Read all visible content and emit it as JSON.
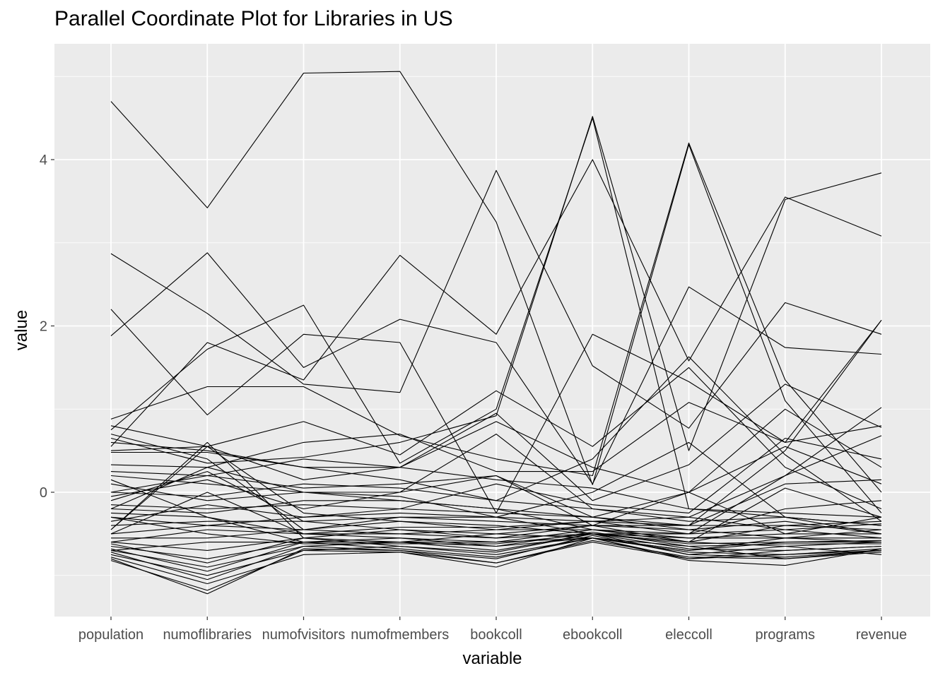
{
  "chart_data": {
    "type": "line",
    "title": "Parallel Coordinate Plot for Libraries in US",
    "xlabel": "variable",
    "ylabel": "value",
    "categories": [
      "population",
      "numoflibraries",
      "numofvisitors",
      "numofmembers",
      "bookcoll",
      "ebookcoll",
      "eleccoll",
      "programs",
      "revenue"
    ],
    "yticks": [
      0,
      2,
      4
    ],
    "ylim": [
      -1.5,
      5.4
    ],
    "grid": true,
    "panel_background": "#ebebeb",
    "grid_color": "#ffffff",
    "line_color": "#000000",
    "series": [
      {
        "values": [
          4.7,
          3.42,
          5.04,
          5.06,
          3.25,
          0.09,
          4.18,
          1.1,
          -0.25
        ]
      },
      {
        "values": [
          0.65,
          0.35,
          0.42,
          0.6,
          0.92,
          4.52,
          0.5,
          3.52,
          3.84
        ]
      },
      {
        "values": [
          0.55,
          1.8,
          1.35,
          2.85,
          1.9,
          4.0,
          1.58,
          3.55,
          3.08
        ]
      },
      {
        "values": [
          2.87,
          2.15,
          1.3,
          1.2,
          3.87,
          1.52,
          0.77,
          2.28,
          1.9
        ]
      },
      {
        "values": [
          1.88,
          2.88,
          1.5,
          2.08,
          1.8,
          0.1,
          2.47,
          1.74,
          1.66
        ]
      },
      {
        "values": [
          2.2,
          0.93,
          1.9,
          1.8,
          -0.25,
          1.9,
          1.33,
          0.6,
          2.07
        ]
      },
      {
        "values": [
          0.75,
          1.72,
          2.25,
          0.35,
          1.0,
          4.5,
          -0.2,
          -0.3,
          -0.5
        ]
      },
      {
        "values": [
          0.88,
          1.27,
          1.27,
          0.68,
          0.4,
          0.2,
          4.2,
          1.35,
          0.0
        ]
      },
      {
        "values": [
          0.8,
          0.55,
          0.85,
          0.45,
          1.22,
          0.55,
          1.5,
          0.3,
          -0.2
        ]
      },
      {
        "values": [
          0.33,
          0.3,
          0.6,
          0.7,
          0.25,
          0.25,
          1.08,
          0.6,
          0.8
        ]
      },
      {
        "values": [
          0.6,
          0.5,
          0.3,
          0.15,
          -0.1,
          0.4,
          1.63,
          0.45,
          -0.35
        ]
      },
      {
        "values": [
          0.5,
          0.55,
          0.15,
          0.3,
          0.85,
          0.3,
          0.0,
          -0.5,
          -0.3
        ]
      },
      {
        "values": [
          0.25,
          0.2,
          0.4,
          0.3,
          0.95,
          -0.1,
          0.33,
          1.3,
          0.78
        ]
      },
      {
        "values": [
          0.0,
          0.2,
          0.05,
          0.1,
          0.2,
          -0.3,
          0.0,
          1.0,
          0.3
        ]
      },
      {
        "values": [
          0.1,
          -0.1,
          0.0,
          0.0,
          0.7,
          -0.2,
          -0.3,
          0.2,
          1.02
        ]
      },
      {
        "values": [
          -0.05,
          0.15,
          -0.2,
          0.0,
          0.2,
          -0.4,
          -0.4,
          0.5,
          2.07
        ]
      },
      {
        "values": [
          -0.2,
          -0.25,
          -0.1,
          -0.1,
          -0.2,
          -0.45,
          -0.5,
          0.2,
          0.68
        ]
      },
      {
        "values": [
          -0.15,
          -0.2,
          -0.15,
          -0.2,
          -0.25,
          -0.3,
          -0.4,
          0.1,
          0.15
        ]
      },
      {
        "values": [
          -0.3,
          -0.4,
          -0.3,
          -0.25,
          -0.3,
          -0.5,
          -0.5,
          -0.2,
          -0.1
        ]
      },
      {
        "values": [
          -0.4,
          -0.35,
          -0.35,
          -0.3,
          -0.35,
          -0.4,
          -0.6,
          0.05,
          -0.3
        ]
      },
      {
        "values": [
          -0.45,
          0.55,
          -0.25,
          -0.35,
          -0.45,
          -0.45,
          -0.6,
          -0.4,
          -0.45
        ]
      },
      {
        "values": [
          -0.55,
          -0.55,
          -0.45,
          -0.35,
          -0.4,
          -0.5,
          -0.55,
          -0.5,
          -0.5
        ]
      },
      {
        "values": [
          -0.6,
          -0.7,
          -0.55,
          -0.45,
          -0.5,
          -0.55,
          -0.7,
          -0.55,
          -0.55
        ]
      },
      {
        "values": [
          -0.65,
          -0.8,
          -0.6,
          -0.55,
          -0.6,
          -0.55,
          -0.7,
          -0.6,
          -0.6
        ]
      },
      {
        "values": [
          -0.7,
          -0.9,
          -0.65,
          -0.6,
          -0.7,
          -0.5,
          -0.75,
          -0.65,
          -0.6
        ]
      },
      {
        "values": [
          -0.75,
          -1.0,
          -0.7,
          -0.65,
          -0.75,
          -0.55,
          -0.8,
          -0.7,
          -0.65
        ]
      },
      {
        "values": [
          -0.78,
          -1.1,
          -0.75,
          -0.72,
          -0.85,
          -0.6,
          -0.8,
          -0.75,
          -0.7
        ]
      },
      {
        "values": [
          -0.82,
          -1.18,
          -0.7,
          -0.72,
          -0.9,
          -0.55,
          -0.82,
          -0.88,
          -0.68
        ]
      },
      {
        "values": [
          -0.8,
          -1.22,
          -0.68,
          -0.7,
          -0.85,
          -0.58,
          -0.78,
          -0.8,
          -0.72
        ]
      },
      {
        "values": [
          -0.72,
          -1.05,
          -0.65,
          -0.7,
          -0.8,
          -0.52,
          -0.75,
          -0.78,
          -0.7
        ]
      },
      {
        "values": [
          -0.68,
          -0.95,
          -0.6,
          -0.68,
          -0.78,
          -0.55,
          -0.72,
          -0.75,
          -0.68
        ]
      },
      {
        "values": [
          -0.62,
          -0.85,
          -0.55,
          -0.65,
          -0.72,
          -0.5,
          -0.68,
          -0.7,
          -0.65
        ]
      },
      {
        "values": [
          -0.7,
          -0.6,
          -0.6,
          -0.6,
          -0.65,
          -0.48,
          -0.65,
          -0.62,
          -0.62
        ]
      },
      {
        "values": [
          -0.2,
          0.3,
          0.0,
          -0.05,
          -0.3,
          -0.35,
          -0.3,
          -0.45,
          -0.55
        ]
      },
      {
        "values": [
          0.0,
          -0.05,
          0.1,
          0.05,
          -0.1,
          -0.2,
          -0.35,
          -0.3,
          -0.4
        ]
      },
      {
        "values": [
          0.2,
          0.1,
          0.0,
          -0.1,
          -0.2,
          -0.3,
          -0.45,
          -0.35,
          -0.5
        ]
      },
      {
        "values": [
          0.48,
          0.48,
          0.3,
          0.3,
          0.15,
          0.05,
          -0.2,
          -0.25,
          -0.3
        ]
      },
      {
        "values": [
          -0.35,
          -0.15,
          -0.3,
          -0.2,
          0.1,
          -0.15,
          -0.25,
          0.65,
          0.4
        ]
      },
      {
        "values": [
          -0.5,
          -0.4,
          -0.45,
          -0.3,
          -0.3,
          0.0,
          0.6,
          -0.3,
          -0.4
        ]
      },
      {
        "values": [
          0.7,
          0.4,
          -0.45,
          -0.5,
          -0.55,
          -0.4,
          -0.45,
          -0.55,
          -0.6
        ]
      },
      {
        "values": [
          -0.1,
          0.25,
          -0.35,
          -0.45,
          -0.55,
          -0.5,
          -0.6,
          -0.65,
          -0.75
        ]
      },
      {
        "values": [
          0.15,
          -0.3,
          -0.5,
          -0.55,
          -0.65,
          -0.55,
          -0.65,
          -0.8,
          -0.7
        ]
      },
      {
        "values": [
          -0.45,
          0.6,
          -0.55,
          -0.6,
          -0.5,
          -0.4,
          0.0,
          0.55,
          0.1
        ]
      },
      {
        "values": [
          -0.6,
          -0.45,
          -0.5,
          -0.5,
          -0.45,
          -0.35,
          -0.5,
          -0.45,
          -0.38
        ]
      },
      {
        "values": [
          -0.25,
          -0.3,
          -0.6,
          -0.6,
          -0.6,
          -0.45,
          -0.55,
          -0.55,
          -0.45
        ]
      },
      {
        "values": [
          -0.3,
          -0.5,
          -0.62,
          -0.62,
          -0.62,
          -0.5,
          -0.62,
          -0.6,
          -0.58
        ]
      },
      {
        "values": [
          -0.5,
          0.0,
          -0.5,
          -0.42,
          -0.42,
          -0.35,
          -0.4,
          -0.4,
          -0.35
        ]
      }
    ]
  }
}
